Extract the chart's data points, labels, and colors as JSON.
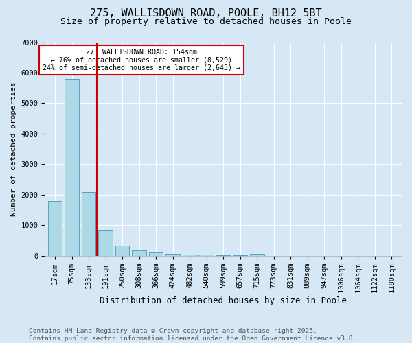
{
  "title1": "275, WALLISDOWN ROAD, POOLE, BH12 5BT",
  "title2": "Size of property relative to detached houses in Poole",
  "xlabel": "Distribution of detached houses by size in Poole",
  "ylabel": "Number of detached properties",
  "categories": [
    "17sqm",
    "75sqm",
    "133sqm",
    "191sqm",
    "250sqm",
    "308sqm",
    "366sqm",
    "424sqm",
    "482sqm",
    "540sqm",
    "599sqm",
    "657sqm",
    "715sqm",
    "773sqm",
    "831sqm",
    "889sqm",
    "947sqm",
    "1006sqm",
    "1064sqm",
    "1122sqm",
    "1180sqm"
  ],
  "values": [
    1800,
    5800,
    2090,
    820,
    330,
    185,
    110,
    75,
    55,
    38,
    30,
    22,
    75,
    5,
    3,
    2,
    1,
    1,
    1,
    1,
    1
  ],
  "bar_color": "#add8e6",
  "bar_edge_color": "#5aa0c0",
  "vline_x": 2.5,
  "vline_color": "#cc0000",
  "annotation_text": "275 WALLISDOWN ROAD: 154sqm\n← 76% of detached houses are smaller (8,529)\n24% of semi-detached houses are larger (2,643) →",
  "annotation_box_color": "#ffffff",
  "annotation_box_edge": "#cc0000",
  "ylim": [
    0,
    7000
  ],
  "yticks": [
    0,
    1000,
    2000,
    3000,
    4000,
    5000,
    6000,
    7000
  ],
  "background_color": "#d6e8f5",
  "plot_bg_color": "#d6e8f5",
  "footer": "Contains HM Land Registry data © Crown copyright and database right 2025.\nContains public sector information licensed under the Open Government Licence v3.0.",
  "title1_fontsize": 11,
  "title2_fontsize": 9.5,
  "xlabel_fontsize": 9,
  "ylabel_fontsize": 8,
  "tick_fontsize": 7.5,
  "footer_fontsize": 6.8
}
